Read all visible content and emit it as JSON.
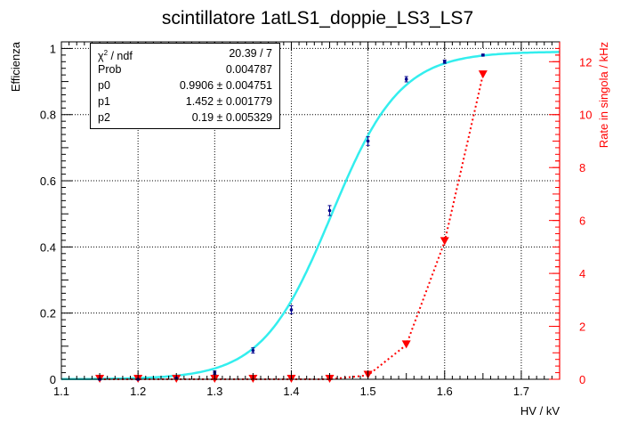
{
  "chart_data": {
    "type": "scatter",
    "title": "scintillatore 1atLS1_doppie_LS3_LS7",
    "xlabel": "HV / kV",
    "ylabel_left": "Efficienza",
    "ylabel_right": "Rate in singola / kHz",
    "xlim": [
      1.1,
      1.75
    ],
    "ylim_left": [
      0,
      1.02
    ],
    "ylim_right": [
      0,
      12.75
    ],
    "x_ticks": [
      "1.1",
      "1.2",
      "1.3",
      "1.4",
      "1.5",
      "1.6",
      "1.7"
    ],
    "y_left_ticks": [
      "0",
      "0.2",
      "0.4",
      "0.6",
      "0.8",
      "1"
    ],
    "y_right_ticks": [
      "0",
      "2",
      "4",
      "6",
      "8",
      "10",
      "12"
    ],
    "grid": true,
    "colors": {
      "efficiency_points": "#00008b",
      "fit": "#33eeee",
      "rate": "#ff0000"
    },
    "series": [
      {
        "axis": "left",
        "x": [
          1.15,
          1.2,
          1.25,
          1.3,
          1.35,
          1.4,
          1.45,
          1.5,
          1.55,
          1.6,
          1.65
        ],
        "values": [
          0.0,
          0.0,
          0.003,
          0.02,
          0.087,
          0.21,
          0.51,
          0.72,
          0.907,
          0.96,
          0.98
        ],
        "errors": [
          0.002,
          0.002,
          0.003,
          0.005,
          0.008,
          0.012,
          0.015,
          0.013,
          0.008,
          0.005,
          0.003
        ]
      },
      {
        "axis": "right",
        "x": [
          1.15,
          1.2,
          1.25,
          1.3,
          1.35,
          1.4,
          1.45,
          1.5,
          1.55,
          1.6,
          1.65
        ],
        "values": [
          0.0,
          0.0,
          0.0,
          0.0,
          0.0,
          0.0,
          0.0,
          0.15,
          1.3,
          5.2,
          11.5
        ]
      }
    ],
    "fit": {
      "p0": 0.9906,
      "p1": 1.452,
      "p2": 0.19
    }
  },
  "stats": [
    {
      "key": "χ2 / ndf",
      "value": "20.39 / 7"
    },
    {
      "key": "Prob",
      "value": "0.004787"
    },
    {
      "key": "p0",
      "value": "0.9906 ± 0.004751"
    },
    {
      "key": "p1",
      "value": "1.452 ± 0.001779"
    },
    {
      "key": "p2",
      "value": "0.19 ± 0.005329"
    }
  ]
}
